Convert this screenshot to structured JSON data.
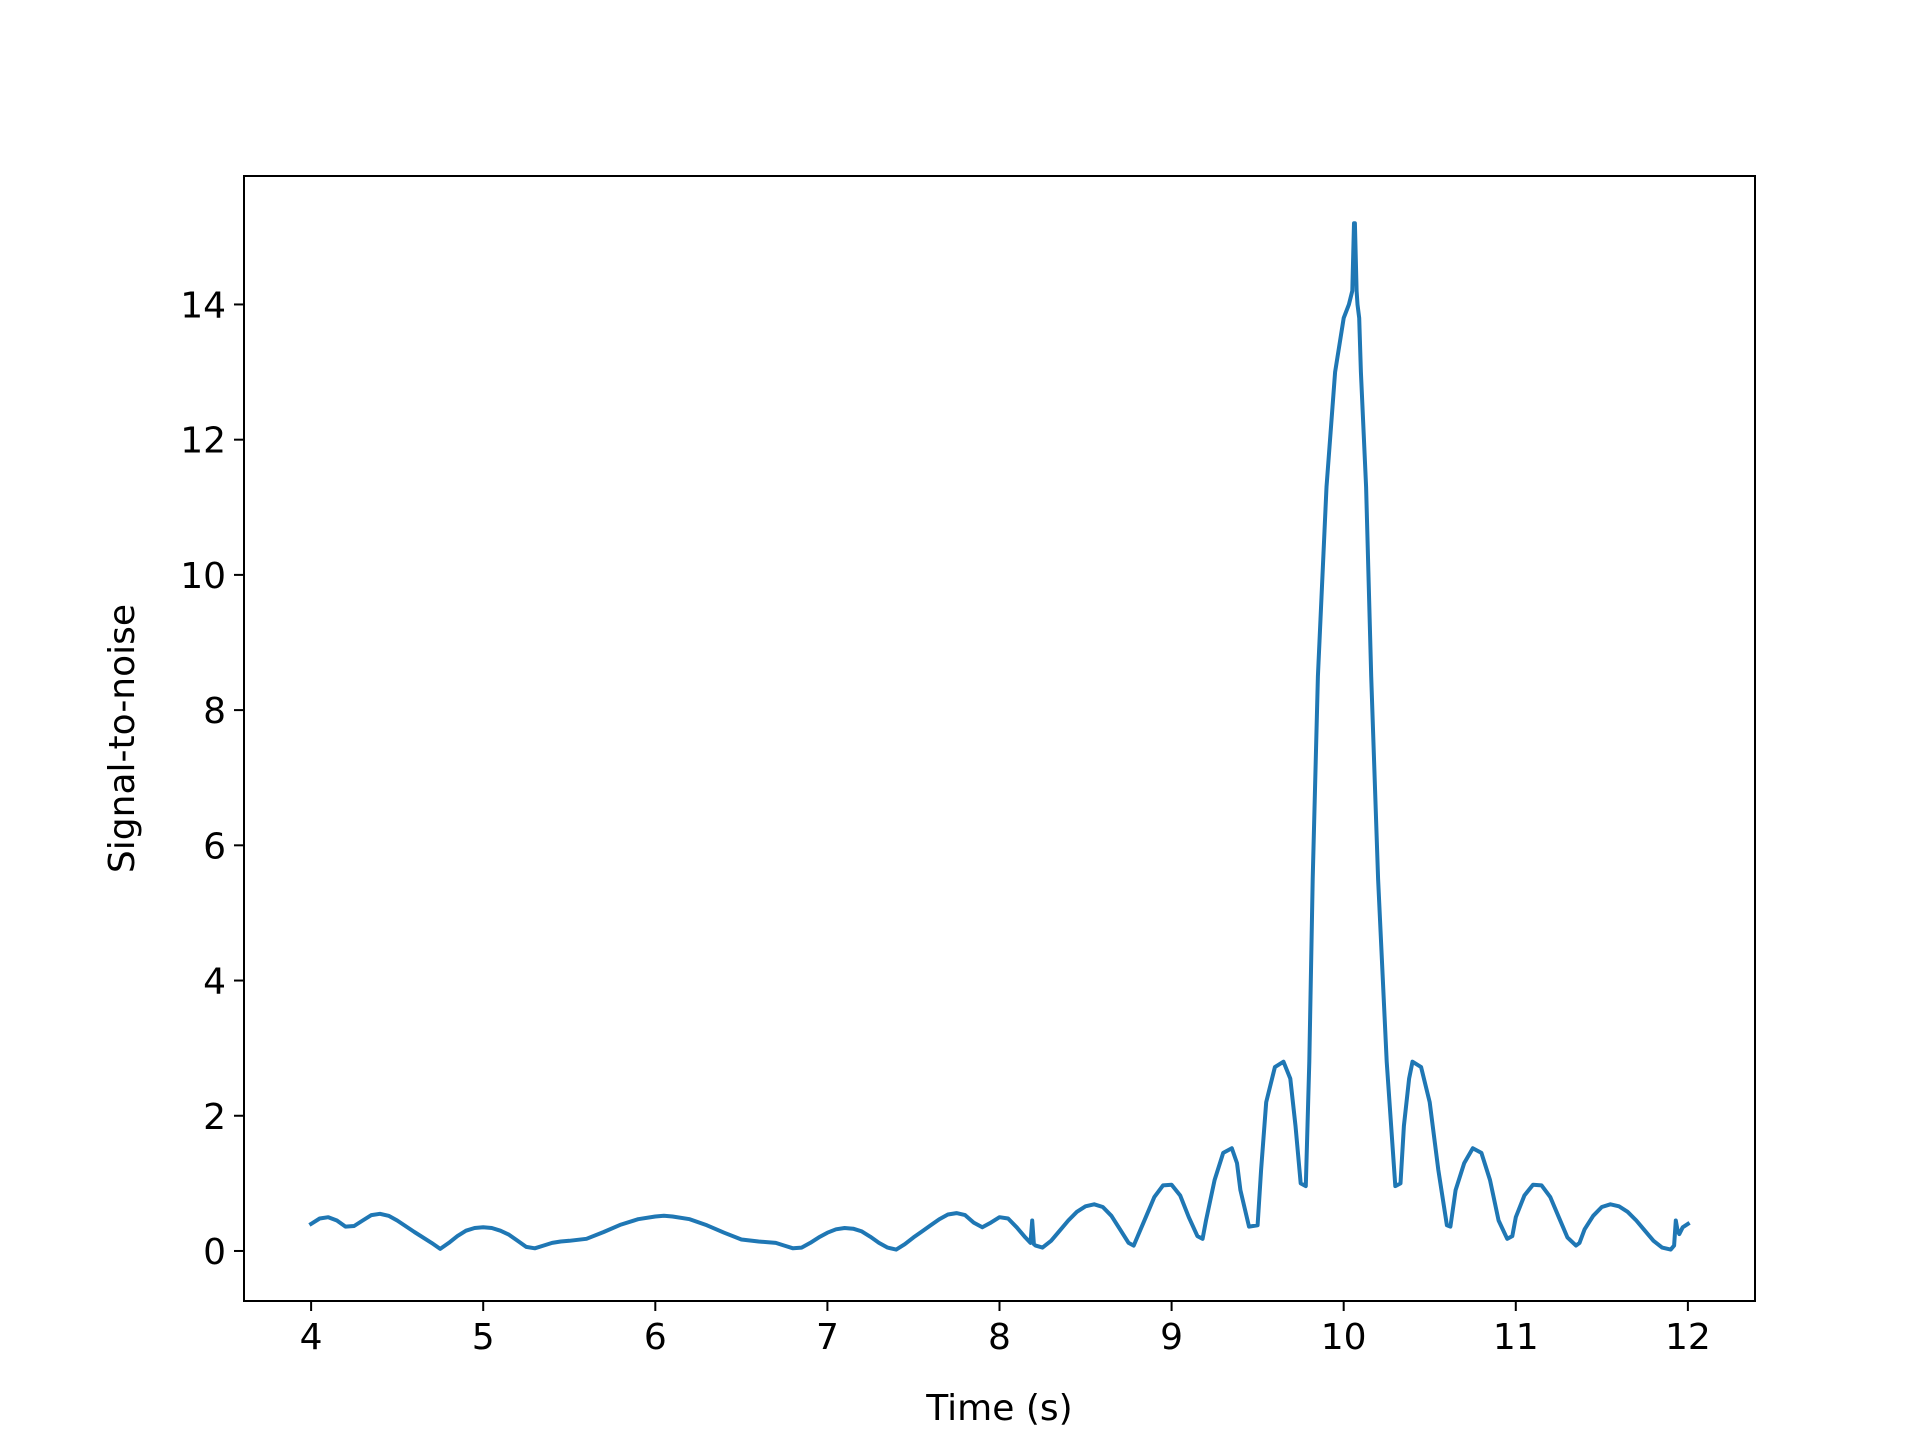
{
  "chart_data": {
    "type": "line",
    "title": "",
    "xlabel": "Time (s)",
    "ylabel": "Signal-to-noise",
    "xlim": [
      3.61,
      12.39
    ],
    "ylim": [
      -0.74,
      15.9
    ],
    "xticks": [
      4,
      5,
      6,
      7,
      8,
      9,
      10,
      11,
      12
    ],
    "yticks": [
      0,
      2,
      4,
      6,
      8,
      10,
      12,
      14
    ],
    "grid": false,
    "legend": "none",
    "line_color": "#1f77b4",
    "series": [
      {
        "x": [
          4.0,
          4.05,
          4.1,
          4.15,
          4.2,
          4.25,
          4.3,
          4.35,
          4.4,
          4.45,
          4.5,
          4.6,
          4.7,
          4.75,
          4.8,
          4.85,
          4.9,
          4.95,
          5.0,
          5.05,
          5.1,
          5.15,
          5.2,
          5.25,
          5.3,
          5.35,
          5.4,
          5.45,
          5.5,
          5.6,
          5.7,
          5.8,
          5.9,
          6.0,
          6.05,
          6.1,
          6.2,
          6.3,
          6.4,
          6.5,
          6.6,
          6.7,
          6.75,
          6.8,
          6.85,
          6.9,
          6.95,
          7.0,
          7.05,
          7.1,
          7.15,
          7.2,
          7.25,
          7.3,
          7.35,
          7.4,
          7.45,
          7.5,
          7.55,
          7.6,
          7.65,
          7.7,
          7.75,
          7.8,
          7.85,
          7.9,
          7.95,
          8.0,
          8.05,
          8.1,
          8.15,
          8.18,
          8.19,
          8.2,
          8.21,
          8.25,
          8.3,
          8.35,
          8.4,
          8.45,
          8.5,
          8.55,
          8.6,
          8.65,
          8.7,
          8.75,
          8.78,
          8.8,
          8.85,
          8.9,
          8.95,
          9.0,
          9.05,
          9.1,
          9.15,
          9.18,
          9.2,
          9.25,
          9.3,
          9.35,
          9.38,
          9.4,
          9.45,
          9.5,
          9.52,
          9.55,
          9.6,
          9.65,
          9.69,
          9.72,
          9.75,
          9.78,
          9.8,
          9.82,
          9.85,
          9.9,
          9.95,
          10.0,
          10.03,
          10.05,
          10.06,
          10.065,
          10.075,
          10.08,
          10.09,
          10.1,
          10.13,
          10.16,
          10.2,
          10.25,
          10.3,
          10.33,
          10.35,
          10.38,
          10.4,
          10.45,
          10.5,
          10.55,
          10.6,
          10.62,
          10.65,
          10.7,
          10.75,
          10.8,
          10.85,
          10.9,
          10.95,
          10.98,
          11.0,
          11.05,
          11.1,
          11.15,
          11.2,
          11.25,
          11.3,
          11.35,
          11.37,
          11.4,
          11.45,
          11.5,
          11.55,
          11.6,
          11.65,
          11.7,
          11.75,
          11.8,
          11.85,
          11.9,
          11.92,
          11.93,
          11.94,
          11.95,
          11.96,
          11.97,
          12.0
        ],
        "y": [
          0.4,
          0.48,
          0.5,
          0.45,
          0.36,
          0.37,
          0.45,
          0.53,
          0.55,
          0.52,
          0.45,
          0.28,
          0.12,
          0.03,
          0.12,
          0.22,
          0.3,
          0.34,
          0.35,
          0.34,
          0.3,
          0.24,
          0.15,
          0.06,
          0.04,
          0.08,
          0.12,
          0.14,
          0.15,
          0.18,
          0.28,
          0.39,
          0.47,
          0.51,
          0.52,
          0.51,
          0.47,
          0.38,
          0.27,
          0.17,
          0.14,
          0.12,
          0.08,
          0.04,
          0.05,
          0.12,
          0.2,
          0.27,
          0.32,
          0.34,
          0.33,
          0.29,
          0.21,
          0.12,
          0.05,
          0.02,
          0.1,
          0.2,
          0.29,
          0.38,
          0.47,
          0.54,
          0.56,
          0.53,
          0.42,
          0.35,
          0.42,
          0.5,
          0.48,
          0.35,
          0.2,
          0.12,
          0.45,
          0.1,
          0.08,
          0.05,
          0.15,
          0.3,
          0.45,
          0.58,
          0.66,
          0.69,
          0.65,
          0.52,
          0.32,
          0.12,
          0.08,
          0.2,
          0.5,
          0.8,
          0.97,
          0.98,
          0.82,
          0.5,
          0.22,
          0.18,
          0.45,
          1.05,
          1.45,
          1.52,
          1.3,
          0.9,
          0.36,
          0.38,
          1.2,
          2.2,
          2.72,
          2.8,
          2.55,
          1.85,
          1.0,
          0.96,
          2.8,
          5.5,
          8.5,
          11.3,
          13.0,
          13.8,
          14.0,
          14.2,
          15.2,
          15.2,
          14.2,
          14.0,
          13.8,
          13.0,
          11.3,
          8.5,
          5.5,
          2.8,
          0.96,
          1.0,
          1.85,
          2.55,
          2.8,
          2.72,
          2.2,
          1.2,
          0.38,
          0.36,
          0.9,
          1.3,
          1.52,
          1.45,
          1.05,
          0.45,
          0.18,
          0.22,
          0.5,
          0.82,
          0.98,
          0.97,
          0.8,
          0.5,
          0.2,
          0.08,
          0.12,
          0.32,
          0.52,
          0.65,
          0.69,
          0.66,
          0.58,
          0.45,
          0.3,
          0.15,
          0.05,
          0.02,
          0.08,
          0.45,
          0.3,
          0.25,
          0.3,
          0.35,
          0.4
        ]
      }
    ]
  }
}
